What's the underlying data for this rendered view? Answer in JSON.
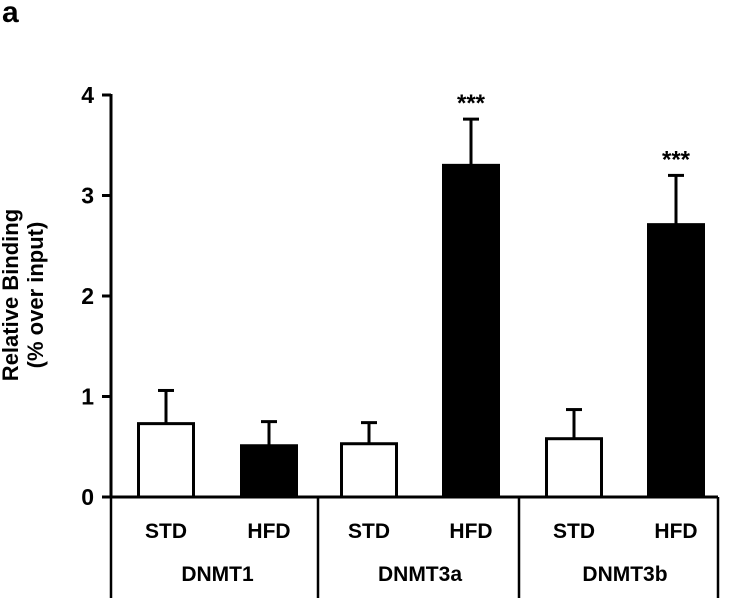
{
  "figure": {
    "panel_letter": "a"
  },
  "chart_data": {
    "type": "bar",
    "title": "",
    "xlabel": "",
    "ylabel": "Relative Binding (% over input)",
    "ylabel_lines": [
      "Relative Binding",
      "(% over input)"
    ],
    "ylim": [
      0,
      4
    ],
    "yticks": [
      0,
      1,
      2,
      3,
      4
    ],
    "grid": false,
    "legend": null,
    "groups": [
      "DNMT1",
      "DNMT3a",
      "DNMT3b"
    ],
    "categories": [
      "STD",
      "HFD"
    ],
    "series": [
      {
        "name": "STD",
        "color": "#ffffff",
        "edge": "#000000",
        "values": [
          0.73,
          0.53,
          0.58
        ],
        "errors": [
          0.33,
          0.21,
          0.29
        ]
      },
      {
        "name": "HFD",
        "color": "#000000",
        "edge": "#000000",
        "values": [
          0.51,
          3.3,
          2.71
        ],
        "errors": [
          0.24,
          0.46,
          0.49
        ]
      }
    ],
    "bars": [
      {
        "group": "DNMT1",
        "condition": "STD",
        "value": 0.73,
        "error": 0.33,
        "significance": ""
      },
      {
        "group": "DNMT1",
        "condition": "HFD",
        "value": 0.51,
        "error": 0.24,
        "significance": ""
      },
      {
        "group": "DNMT3a",
        "condition": "STD",
        "value": 0.53,
        "error": 0.21,
        "significance": ""
      },
      {
        "group": "DNMT3a",
        "condition": "HFD",
        "value": 3.3,
        "error": 0.46,
        "significance": "***"
      },
      {
        "group": "DNMT3b",
        "condition": "STD",
        "value": 0.58,
        "error": 0.29,
        "significance": ""
      },
      {
        "group": "DNMT3b",
        "condition": "HFD",
        "value": 2.71,
        "error": 0.49,
        "significance": "***"
      }
    ],
    "annotations": [
      "***",
      "***"
    ]
  }
}
